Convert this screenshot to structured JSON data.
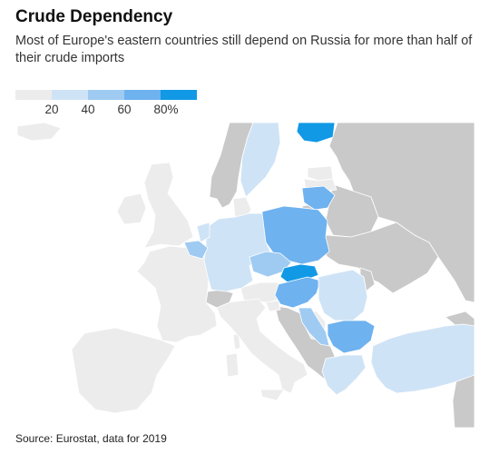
{
  "header": {
    "title": "Crude Dependency",
    "subtitle": "Most of Europe's eastern countries still depend on Russia for more than half of their crude imports"
  },
  "legend": {
    "colors": [
      "#ececec",
      "#cfe3f6",
      "#9fcbf2",
      "#6eb2ef",
      "#1199e6"
    ],
    "labels": [
      "20",
      "40",
      "60",
      "80%"
    ]
  },
  "colors": {
    "sea": "#ffffff",
    "non_eu": "#c9c9c9",
    "no_dependency": "#ececec",
    "border": "#ffffff"
  },
  "map": {
    "countries": [
      {
        "name": "Finland",
        "bin": 4
      },
      {
        "name": "Sweden",
        "bin": 1
      },
      {
        "name": "Lithuania",
        "bin": 3
      },
      {
        "name": "Poland",
        "bin": 3
      },
      {
        "name": "Germany",
        "bin": 1
      },
      {
        "name": "Netherlands",
        "bin": 1
      },
      {
        "name": "Belgium",
        "bin": 2
      },
      {
        "name": "Czechia",
        "bin": 2
      },
      {
        "name": "Slovakia",
        "bin": 4
      },
      {
        "name": "Hungary",
        "bin": 3
      },
      {
        "name": "Romania",
        "bin": 1
      },
      {
        "name": "Bulgaria",
        "bin": 3
      },
      {
        "name": "Croatia",
        "bin": 2
      },
      {
        "name": "Greece",
        "bin": 1
      },
      {
        "name": "Turkey",
        "bin": 1
      }
    ]
  },
  "footer": {
    "source": "Source: Eurostat, data for 2019"
  }
}
